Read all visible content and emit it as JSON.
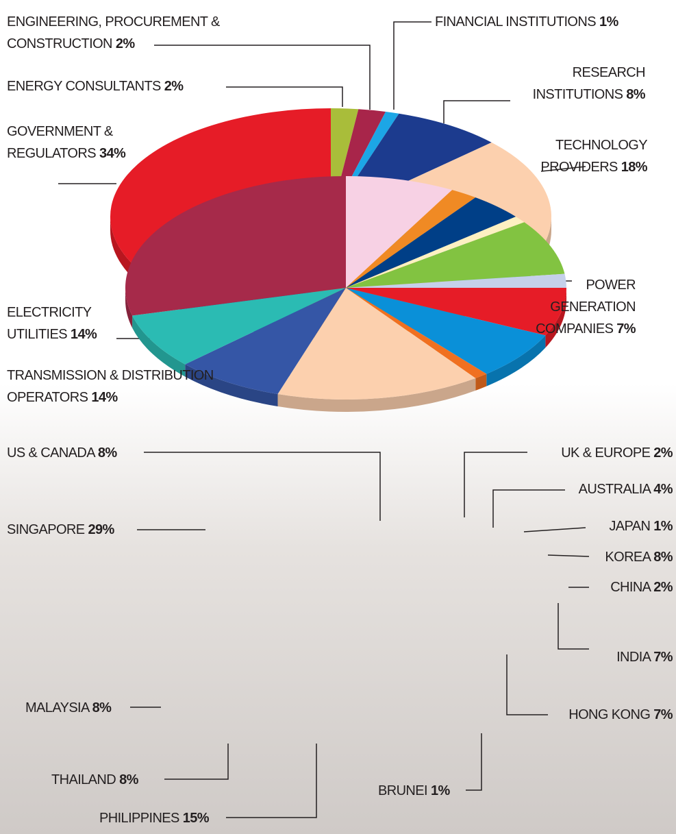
{
  "chart_data": [
    {
      "type": "pie",
      "categories": [
        "ENERGY CONSULTANTS",
        "ENGINEERING, PROCUREMENT & CONSTRUCTION",
        "FINANCIAL INSTITUTIONS",
        "RESEARCH INSTITUTIONS",
        "TECHNOLOGY PROVIDERS",
        "POWER GENERATION COMPANIES",
        "TRANSMISSION & DISTRIBUTION OPERATORS",
        "ELECTRICITY UTILITIES",
        "GOVERNMENT & REGULATORS"
      ],
      "values": [
        2,
        2,
        1,
        8,
        18,
        7,
        14,
        14,
        34
      ],
      "value_labels": [
        "2%",
        "2%",
        "1%",
        "8%",
        "18%",
        "7%",
        "14%",
        "14%",
        "34%"
      ],
      "colors": [
        "#a9bd3a",
        "#a8254a",
        "#1ca6e6",
        "#1c3b8e",
        "#fcd0ae",
        "#2bbbb3",
        "#f28c22",
        "#0d64b0",
        "#e61c27"
      ]
    },
    {
      "type": "pie",
      "categories": [
        "US & CANADA",
        "UK & EUROPE",
        "AUSTRALIA",
        "JAPAN",
        "KOREA",
        "CHINA",
        "INDIA",
        "HONG KONG",
        "BRUNEI",
        "PHILIPPINES",
        "THAILAND",
        "MALAYSIA",
        "SINGAPORE"
      ],
      "values": [
        8,
        2,
        4,
        1,
        8,
        2,
        7,
        7,
        1,
        15,
        8,
        8,
        29
      ],
      "value_labels": [
        "8%",
        "2%",
        "4%",
        "1%",
        "8%",
        "2%",
        "7%",
        "7%",
        "1%",
        "15%",
        "8%",
        "8%",
        "29%"
      ],
      "colors": [
        "#f7d1e4",
        "#f08a24",
        "#003f87",
        "#fdf0c2",
        "#82c341",
        "#c5d0ea",
        "#e61c27",
        "#0a90d8",
        "#f07020",
        "#fcd0ae",
        "#3556a6",
        "#2bbbb3",
        "#a62a4a"
      ]
    }
  ]
}
